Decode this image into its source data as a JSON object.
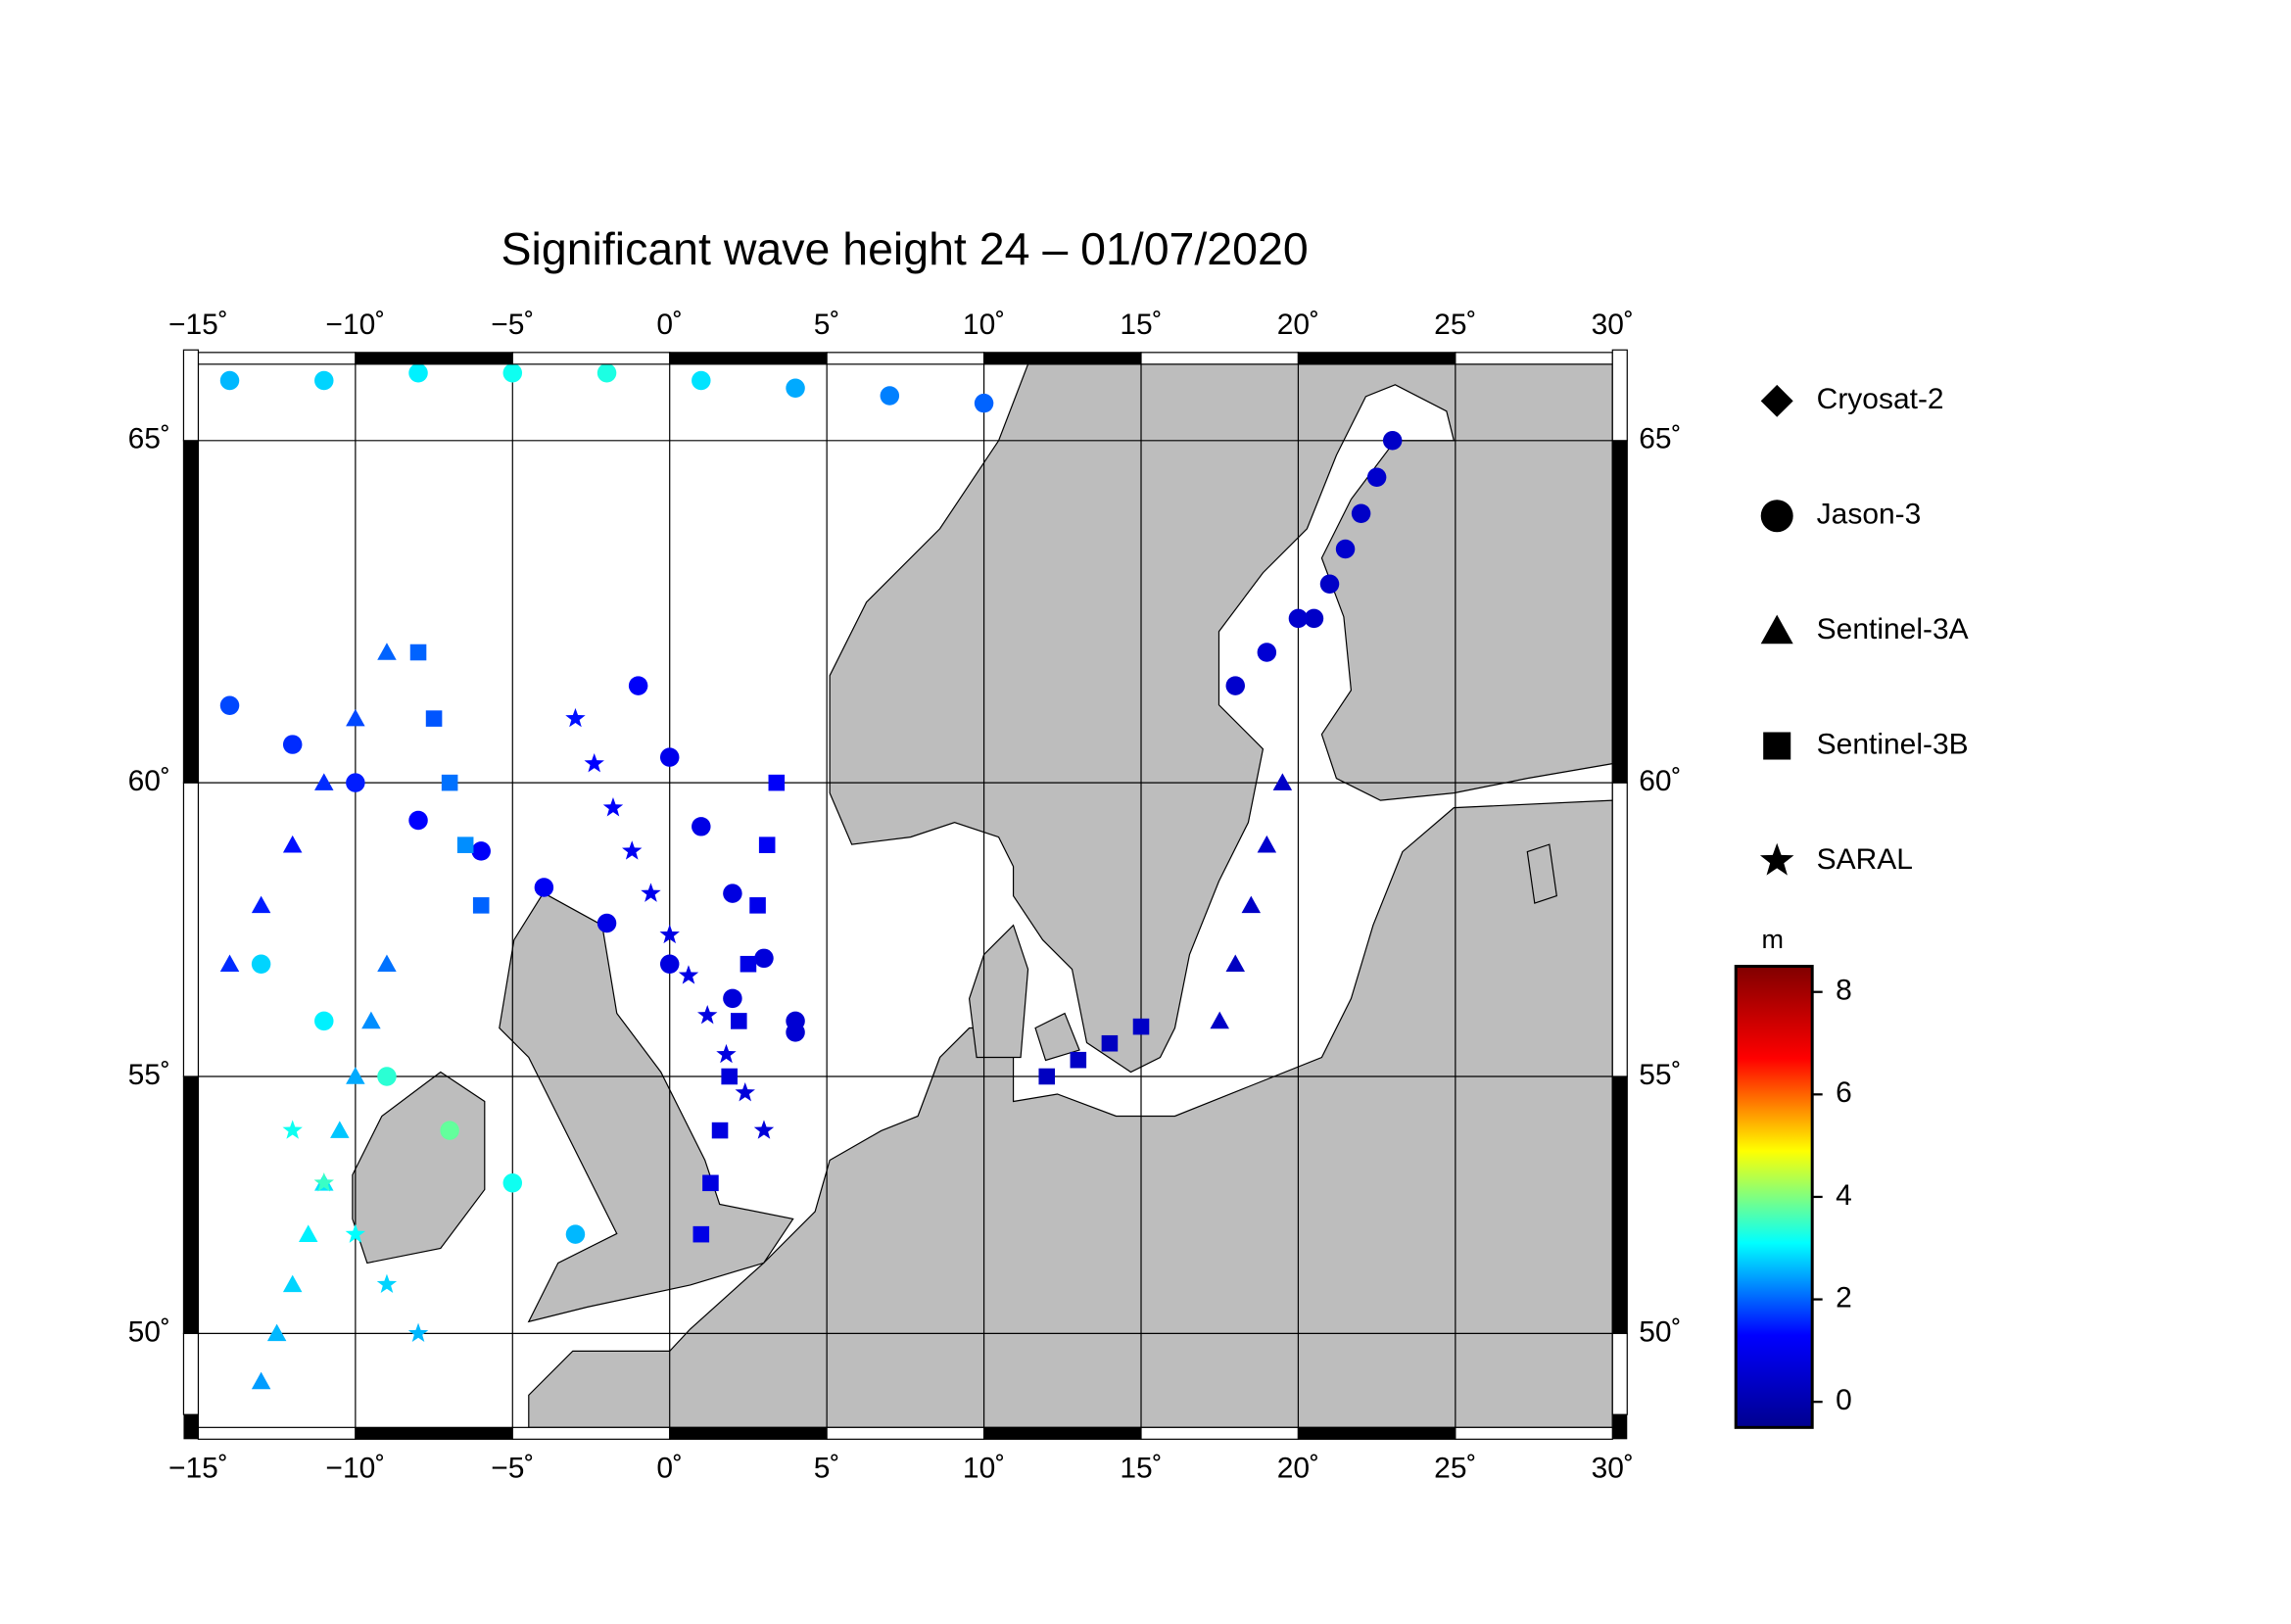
{
  "chart_data": {
    "type": "map",
    "title": "Significant wave height 24 – 01/07/2020",
    "xlim": [
      -15,
      30
    ],
    "ylim": [
      48.3,
      66.2
    ],
    "xticks": [
      {
        "value": -15,
        "label": "−15˚"
      },
      {
        "value": -10,
        "label": "−10˚"
      },
      {
        "value": -5,
        "label": "−5˚"
      },
      {
        "value": 0,
        "label": "0˚"
      },
      {
        "value": 5,
        "label": "5˚"
      },
      {
        "value": 10,
        "label": "10˚"
      },
      {
        "value": 15,
        "label": "15˚"
      },
      {
        "value": 20,
        "label": "20˚"
      },
      {
        "value": 25,
        "label": "25˚"
      },
      {
        "value": 30,
        "label": "30˚"
      }
    ],
    "yticks": [
      {
        "value": 50,
        "label": "50˚"
      },
      {
        "value": 55,
        "label": "55˚"
      },
      {
        "value": 60,
        "label": "60˚"
      },
      {
        "value": 65,
        "label": "65˚"
      }
    ],
    "grid": true,
    "colorbar": {
      "label": "m",
      "clim": [
        -0.5,
        8.5
      ],
      "ticks": [
        0,
        2,
        4,
        6,
        8
      ],
      "colormap": [
        "#00008f",
        "#0000ff",
        "#00ffff",
        "#ffff00",
        "#ff0000",
        "#800000"
      ]
    },
    "series": [
      {
        "name": "Cryosat-2",
        "marker": "diamond",
        "lon": [],
        "lat": [],
        "values": []
      },
      {
        "name": "Jason-3",
        "marker": "circle",
        "lon": [
          -14,
          -12,
          -10,
          -8,
          -6,
          -4,
          -2,
          0,
          2,
          4,
          -14,
          -11,
          -8,
          -5,
          -2,
          1,
          4,
          7,
          10,
          -1,
          0,
          1,
          2,
          3,
          4,
          20.5,
          21,
          21.5,
          22,
          22.5,
          23,
          18,
          19,
          20,
          -13,
          -11,
          -9,
          -7,
          -5,
          -3
        ],
        "lat": [
          61.2,
          60.6,
          60.0,
          59.4,
          58.9,
          58.3,
          57.7,
          57.0,
          56.4,
          55.8,
          65.8,
          65.8,
          65.9,
          65.9,
          65.9,
          65.8,
          65.7,
          65.6,
          65.5,
          61.5,
          60.4,
          59.3,
          58.2,
          57.1,
          56.0,
          62.5,
          63.0,
          63.5,
          64.0,
          64.5,
          65.0,
          61.5,
          62.0,
          62.5,
          57.0,
          56.0,
          55.0,
          54.0,
          53.0,
          52.0
        ],
        "values": [
          1.8,
          1.6,
          1.5,
          1.3,
          1.2,
          1.1,
          0.9,
          0.8,
          0.7,
          0.6,
          2.6,
          2.8,
          3.0,
          3.2,
          3.3,
          2.9,
          2.5,
          2.2,
          2.0,
          1.2,
          1.0,
          0.9,
          0.8,
          0.7,
          0.6,
          0.4,
          0.4,
          0.5,
          0.4,
          0.5,
          0.4,
          0.5,
          0.6,
          0.5,
          2.8,
          3.0,
          3.4,
          3.8,
          3.2,
          2.6
        ]
      },
      {
        "name": "Sentinel-3A",
        "marker": "triangle",
        "lon": [
          -13,
          -12.5,
          -12,
          -11.5,
          -11,
          -10.5,
          -10,
          -9.5,
          -9,
          -14,
          -13,
          -12,
          -11,
          -10,
          -9,
          17.5,
          18,
          18.5,
          19,
          19.5
        ],
        "lat": [
          49,
          50,
          51,
          52,
          53,
          54,
          55,
          56,
          57,
          57,
          58,
          59,
          60,
          61,
          62,
          56,
          57,
          58,
          59,
          60
        ],
        "values": [
          2.4,
          2.6,
          2.8,
          3.0,
          2.9,
          2.7,
          2.5,
          2.3,
          2.1,
          1.6,
          1.5,
          1.4,
          1.6,
          1.8,
          2.0,
          0.4,
          0.3,
          0.4,
          0.5,
          0.4
        ]
      },
      {
        "name": "Sentinel-3B",
        "marker": "square",
        "lon": [
          1,
          1.3,
          1.6,
          1.9,
          2.2,
          2.5,
          2.8,
          3.1,
          3.4,
          -8,
          -7.5,
          -7,
          -6.5,
          -6,
          12,
          13,
          14,
          15
        ],
        "lat": [
          52,
          53,
          54,
          55,
          56,
          57,
          58,
          59,
          60,
          62,
          61,
          60,
          59,
          58,
          55,
          55.3,
          55.6,
          55.9
        ],
        "values": [
          0.9,
          0.8,
          0.8,
          0.7,
          0.8,
          0.9,
          1.0,
          1.1,
          1.2,
          2.0,
          1.9,
          2.1,
          2.3,
          2.0,
          0.3,
          0.4,
          0.3,
          0.4
        ]
      },
      {
        "name": "SARAL",
        "marker": "star",
        "lon": [
          -3,
          -2.4,
          -1.8,
          -1.2,
          -0.6,
          0,
          0.6,
          1.2,
          1.8,
          2.4,
          3,
          -12,
          -11,
          -10,
          -9,
          -8
        ],
        "lat": [
          61,
          60.3,
          59.6,
          58.9,
          58.2,
          57.5,
          56.8,
          56.1,
          55.4,
          54.7,
          54,
          54,
          53,
          52,
          51,
          50
        ],
        "values": [
          1.4,
          1.3,
          1.2,
          1.1,
          1.0,
          0.9,
          0.9,
          0.8,
          0.8,
          0.7,
          0.7,
          3.2,
          3.5,
          3.1,
          2.8,
          2.6
        ]
      }
    ]
  }
}
